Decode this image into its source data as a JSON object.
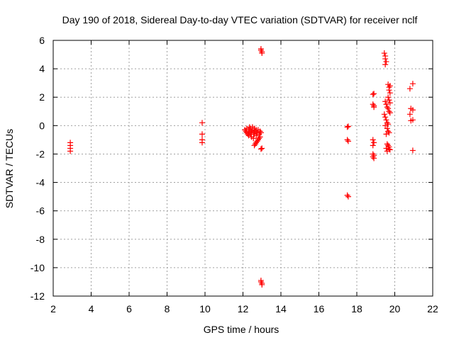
{
  "chart_data": {
    "type": "scatter",
    "title": "Day 190 of 2018, Sidereal Day-to-day VTEC variation (SDTVAR) for receiver nclf",
    "xlabel": "GPS time / hours",
    "ylabel": "SDTVAR / TECUs",
    "xlim": [
      2,
      22
    ],
    "ylim": [
      -12,
      6
    ],
    "xticks": [
      2,
      4,
      6,
      8,
      10,
      12,
      14,
      16,
      18,
      20,
      22
    ],
    "yticks": [
      -12,
      -10,
      -8,
      -6,
      -4,
      -2,
      0,
      2,
      4,
      6
    ],
    "grid": true,
    "marker": "+",
    "color": "#ff0000",
    "series": [
      {
        "name": "SDTVAR",
        "points": [
          [
            2.9,
            -1.2
          ],
          [
            2.9,
            -1.4
          ],
          [
            2.9,
            -1.6
          ],
          [
            2.9,
            -1.8
          ],
          [
            9.85,
            0.2
          ],
          [
            9.85,
            -0.6
          ],
          [
            9.85,
            -1.0
          ],
          [
            9.85,
            -1.2
          ],
          [
            12.1,
            -0.3
          ],
          [
            12.15,
            -0.4
          ],
          [
            12.2,
            -0.5
          ],
          [
            12.2,
            -0.2
          ],
          [
            12.25,
            -0.6
          ],
          [
            12.3,
            -0.3
          ],
          [
            12.3,
            -0.7
          ],
          [
            12.35,
            -0.1
          ],
          [
            12.35,
            -0.5
          ],
          [
            12.4,
            -0.2
          ],
          [
            12.4,
            -0.6
          ],
          [
            12.45,
            -0.4
          ],
          [
            12.45,
            -0.8
          ],
          [
            12.5,
            -0.1
          ],
          [
            12.5,
            -0.3
          ],
          [
            12.55,
            -0.5
          ],
          [
            12.55,
            -0.9
          ],
          [
            12.6,
            -0.2
          ],
          [
            12.6,
            -0.6
          ],
          [
            12.65,
            -0.4
          ],
          [
            12.7,
            -0.3
          ],
          [
            12.7,
            -0.7
          ],
          [
            12.75,
            -0.5
          ],
          [
            12.8,
            -0.3
          ],
          [
            12.85,
            -0.6
          ],
          [
            12.9,
            -0.4
          ],
          [
            12.95,
            -0.5
          ],
          [
            12.6,
            -1.4
          ],
          [
            12.65,
            -1.3
          ],
          [
            12.7,
            -1.2
          ],
          [
            12.75,
            -1.1
          ],
          [
            12.8,
            -1.0
          ],
          [
            12.85,
            -0.9
          ],
          [
            12.9,
            -0.8
          ],
          [
            12.95,
            -1.65
          ],
          [
            13.0,
            -1.6
          ],
          [
            12.95,
            5.4
          ],
          [
            12.95,
            5.3
          ],
          [
            13.0,
            5.2
          ],
          [
            13.0,
            5.1
          ],
          [
            12.95,
            -10.9
          ],
          [
            12.95,
            -11.0
          ],
          [
            13.0,
            -11.1
          ],
          [
            13.0,
            -11.2
          ],
          [
            17.5,
            -0.1
          ],
          [
            17.55,
            -0.05
          ],
          [
            17.5,
            -1.0
          ],
          [
            17.55,
            -1.1
          ],
          [
            17.5,
            -4.9
          ],
          [
            17.55,
            -5.0
          ],
          [
            18.85,
            2.2
          ],
          [
            18.9,
            2.25
          ],
          [
            18.85,
            1.5
          ],
          [
            18.9,
            1.4
          ],
          [
            18.9,
            1.3
          ],
          [
            18.85,
            -1.0
          ],
          [
            18.9,
            -1.2
          ],
          [
            18.85,
            -1.4
          ],
          [
            18.85,
            -2.0
          ],
          [
            18.9,
            -2.1
          ],
          [
            18.85,
            -2.2
          ],
          [
            18.9,
            -2.3
          ],
          [
            19.45,
            5.1
          ],
          [
            19.5,
            4.9
          ],
          [
            19.5,
            4.7
          ],
          [
            19.55,
            4.5
          ],
          [
            19.5,
            4.3
          ],
          [
            19.65,
            2.9
          ],
          [
            19.7,
            2.7
          ],
          [
            19.75,
            2.8
          ],
          [
            19.7,
            2.5
          ],
          [
            19.75,
            2.3
          ],
          [
            19.65,
            2.0
          ],
          [
            19.7,
            1.8
          ],
          [
            19.75,
            1.6
          ],
          [
            19.5,
            1.7
          ],
          [
            19.55,
            1.5
          ],
          [
            19.6,
            1.3
          ],
          [
            19.65,
            1.2
          ],
          [
            19.7,
            1.0
          ],
          [
            19.75,
            0.9
          ],
          [
            19.45,
            0.8
          ],
          [
            19.5,
            0.6
          ],
          [
            19.55,
            0.4
          ],
          [
            19.6,
            0.2
          ],
          [
            19.65,
            0.1
          ],
          [
            19.5,
            0.0
          ],
          [
            19.6,
            -0.2
          ],
          [
            19.65,
            -0.4
          ],
          [
            19.7,
            -0.5
          ],
          [
            19.55,
            -0.6
          ],
          [
            19.6,
            -1.3
          ],
          [
            19.65,
            -1.4
          ],
          [
            19.7,
            -1.5
          ],
          [
            19.55,
            -1.6
          ],
          [
            19.75,
            -1.7
          ],
          [
            19.6,
            -1.8
          ],
          [
            19.7,
            -1.65
          ],
          [
            20.8,
            2.6
          ],
          [
            20.95,
            2.95
          ],
          [
            20.85,
            1.2
          ],
          [
            20.95,
            1.1
          ],
          [
            20.8,
            0.8
          ],
          [
            20.85,
            0.35
          ],
          [
            20.95,
            0.4
          ],
          [
            20.95,
            -1.75
          ]
        ]
      }
    ]
  }
}
